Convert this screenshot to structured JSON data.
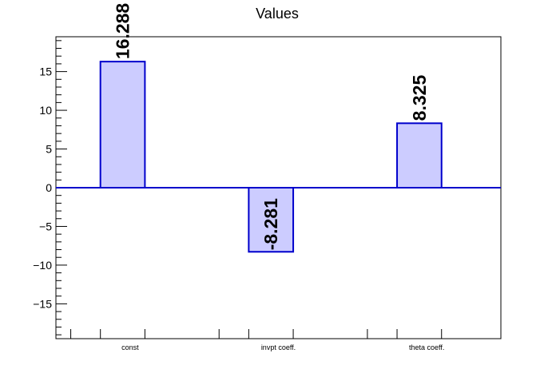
{
  "chart_data": {
    "type": "bar",
    "title": "Values",
    "categories": [
      "const",
      "invpt coeff.",
      "theta coeff."
    ],
    "values": [
      16.288,
      -8.281,
      8.325
    ],
    "data_labels": [
      "16.288",
      "-8.281",
      "8.325"
    ],
    "xlabel": "",
    "ylabel": "",
    "ylim": [
      -19.5,
      19.5
    ],
    "y_ticks": [
      -15,
      -10,
      -5,
      0,
      5,
      10,
      15
    ],
    "y_tick_labels": [
      "−15",
      "−10",
      "−5",
      "0",
      "5",
      "10",
      "15"
    ],
    "grid": false,
    "bar_fill": "#ccccff",
    "bar_stroke": "#0000cc",
    "zero_line_color": "#0000cc"
  }
}
